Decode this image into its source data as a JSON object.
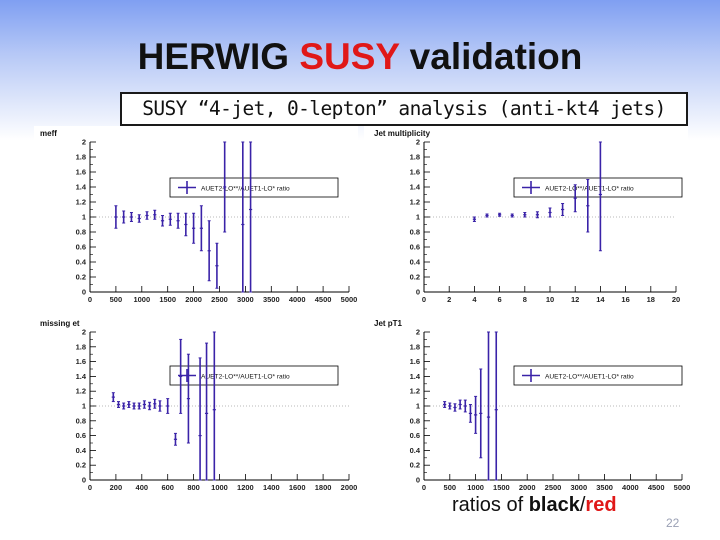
{
  "slide": {
    "title_part1": "HERWIG ",
    "title_highlight": "SUSY",
    "title_part2": " validation",
    "subtitle": "SUSY “4-jet, 0-lepton” analysis (anti-kt4 jets)",
    "footer_part1": "ratios of ",
    "footer_black": "black",
    "footer_sep": "/",
    "footer_red": "red",
    "page_number": "22",
    "colors": {
      "accent": "#e01818",
      "series": "#3a23a8"
    }
  },
  "chart_data": [
    {
      "type": "scatter",
      "title": "meff",
      "legend": "AUET2-LO**/AUET1-LO* ratio",
      "legend_position": "top-right",
      "xlim": [
        0,
        5000
      ],
      "ylim": [
        0,
        2
      ],
      "xticks": [
        "0",
        "500",
        "1000",
        "1500",
        "2000",
        "2500",
        "3000",
        "3500",
        "4000",
        "4500",
        "5000"
      ],
      "yticks": [
        "0",
        "0.2",
        "0.4",
        "0.6",
        "0.8",
        "1",
        "1.2",
        "1.4",
        "1.6",
        "1.8",
        "2"
      ],
      "grid": false,
      "points": [
        {
          "x": 500,
          "y": 1.0,
          "err": 0.15
        },
        {
          "x": 650,
          "y": 1.0,
          "err": 0.08
        },
        {
          "x": 800,
          "y": 1.0,
          "err": 0.06
        },
        {
          "x": 950,
          "y": 0.98,
          "err": 0.05
        },
        {
          "x": 1100,
          "y": 1.02,
          "err": 0.05
        },
        {
          "x": 1250,
          "y": 1.03,
          "err": 0.06
        },
        {
          "x": 1400,
          "y": 0.95,
          "err": 0.07
        },
        {
          "x": 1550,
          "y": 0.97,
          "err": 0.08
        },
        {
          "x": 1700,
          "y": 0.95,
          "err": 0.1
        },
        {
          "x": 1850,
          "y": 0.9,
          "err": 0.15
        },
        {
          "x": 2000,
          "y": 0.85,
          "err": 0.2
        },
        {
          "x": 2150,
          "y": 0.85,
          "err": 0.3
        },
        {
          "x": 2300,
          "y": 0.55,
          "err": 0.4
        },
        {
          "x": 2450,
          "y": 0.35,
          "err": 0.3
        },
        {
          "x": 2600,
          "y": 1.4,
          "err": 0.6
        },
        {
          "x": 2950,
          "y": 0.9,
          "err": 1.5
        },
        {
          "x": 3100,
          "y": 1.1,
          "err": 1.9
        }
      ]
    },
    {
      "type": "scatter",
      "title": "Jet multiplicity",
      "legend": "AUET2-LO**/AUET1-LO* ratio",
      "legend_position": "top-right",
      "xlim": [
        0,
        20
      ],
      "ylim": [
        0,
        2
      ],
      "xticks": [
        "0",
        "2",
        "4",
        "6",
        "8",
        "10",
        "12",
        "14",
        "16",
        "18",
        "20"
      ],
      "yticks": [
        "0",
        "0.2",
        "0.4",
        "0.6",
        "0.8",
        "1",
        "1.2",
        "1.4",
        "1.6",
        "1.8",
        "2"
      ],
      "grid": false,
      "points": [
        {
          "x": 4,
          "y": 0.97,
          "err": 0.03
        },
        {
          "x": 5,
          "y": 1.02,
          "err": 0.02
        },
        {
          "x": 6,
          "y": 1.03,
          "err": 0.02
        },
        {
          "x": 7,
          "y": 1.02,
          "err": 0.02
        },
        {
          "x": 8,
          "y": 1.03,
          "err": 0.03
        },
        {
          "x": 9,
          "y": 1.03,
          "err": 0.04
        },
        {
          "x": 10,
          "y": 1.06,
          "err": 0.06
        },
        {
          "x": 11,
          "y": 1.1,
          "err": 0.08
        },
        {
          "x": 12,
          "y": 1.25,
          "err": 0.18
        },
        {
          "x": 13,
          "y": 1.15,
          "err": 0.35
        },
        {
          "x": 14,
          "y": 1.3,
          "err": 0.75
        }
      ]
    },
    {
      "type": "scatter",
      "title": "missing et",
      "legend": "AUET2-LO**/AUET1-LO* ratio",
      "legend_position": "top-right",
      "xlim": [
        0,
        2000
      ],
      "ylim": [
        0,
        2
      ],
      "xticks": [
        "0",
        "200",
        "400",
        "600",
        "800",
        "1000",
        "1200",
        "1400",
        "1600",
        "1800",
        "2000"
      ],
      "yticks": [
        "0",
        "0.2",
        "0.4",
        "0.6",
        "0.8",
        "1",
        "1.2",
        "1.4",
        "1.6",
        "1.8",
        "2"
      ],
      "grid": false,
      "points": [
        {
          "x": 180,
          "y": 1.12,
          "err": 0.06
        },
        {
          "x": 220,
          "y": 1.02,
          "err": 0.04
        },
        {
          "x": 260,
          "y": 1.0,
          "err": 0.04
        },
        {
          "x": 300,
          "y": 1.02,
          "err": 0.04
        },
        {
          "x": 340,
          "y": 1.0,
          "err": 0.04
        },
        {
          "x": 380,
          "y": 1.0,
          "err": 0.04
        },
        {
          "x": 420,
          "y": 1.02,
          "err": 0.05
        },
        {
          "x": 460,
          "y": 1.0,
          "err": 0.05
        },
        {
          "x": 500,
          "y": 1.03,
          "err": 0.06
        },
        {
          "x": 540,
          "y": 1.0,
          "err": 0.07
        },
        {
          "x": 600,
          "y": 1.0,
          "err": 0.1
        },
        {
          "x": 660,
          "y": 0.55,
          "err": 0.08
        },
        {
          "x": 700,
          "y": 1.4,
          "err": 0.5
        },
        {
          "x": 760,
          "y": 1.1,
          "err": 0.6
        },
        {
          "x": 850,
          "y": 0.6,
          "err": 1.05
        },
        {
          "x": 900,
          "y": 0.9,
          "err": 0.95
        },
        {
          "x": 960,
          "y": 0.95,
          "err": 1.05
        }
      ]
    },
    {
      "type": "scatter",
      "title": "Jet pT1",
      "legend": "AUET2-LO**/AUET1-LO* ratio",
      "legend_position": "top-right",
      "xlim": [
        0,
        5000
      ],
      "ylim": [
        0,
        2
      ],
      "xticks": [
        "0",
        "500",
        "1000",
        "1500",
        "2000",
        "2500",
        "3000",
        "3500",
        "4000",
        "4500",
        "5000"
      ],
      "yticks": [
        "0",
        "0.2",
        "0.4",
        "0.6",
        "0.8",
        "1",
        "1.2",
        "1.4",
        "1.6",
        "1.8",
        "2"
      ],
      "grid": false,
      "points": [
        {
          "x": 400,
          "y": 1.02,
          "err": 0.04
        },
        {
          "x": 500,
          "y": 1.0,
          "err": 0.04
        },
        {
          "x": 600,
          "y": 0.98,
          "err": 0.05
        },
        {
          "x": 700,
          "y": 1.02,
          "err": 0.06
        },
        {
          "x": 800,
          "y": 1.0,
          "err": 0.08
        },
        {
          "x": 900,
          "y": 0.9,
          "err": 0.12
        },
        {
          "x": 1000,
          "y": 0.88,
          "err": 0.25
        },
        {
          "x": 1100,
          "y": 0.9,
          "err": 0.6
        },
        {
          "x": 1250,
          "y": 0.85,
          "err": 1.3
        },
        {
          "x": 1400,
          "y": 0.95,
          "err": 1.2
        }
      ]
    }
  ]
}
